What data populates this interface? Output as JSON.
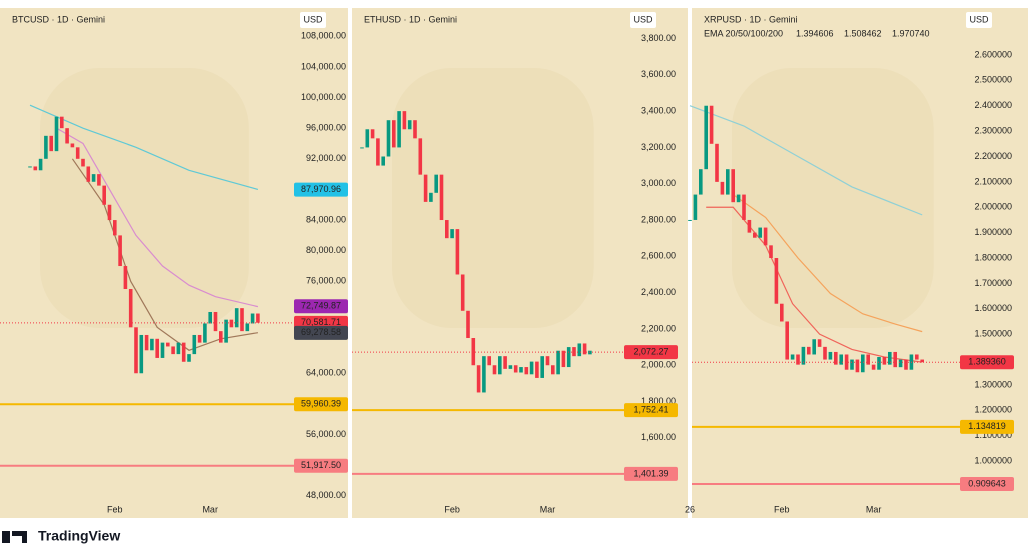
{
  "chart_data": [
    {
      "type": "candlestick",
      "title": "BTCUSD · 1D · Gemini",
      "currency": "USD",
      "categories": [
        null,
        null,
        null,
        null,
        null,
        null,
        null,
        null,
        null,
        null,
        null,
        null,
        null,
        null,
        null,
        null,
        "Feb",
        null,
        null,
        null,
        null,
        null,
        null,
        null,
        null,
        null,
        null,
        null,
        null,
        null,
        null,
        null,
        null,
        null,
        "Mar",
        null,
        null,
        null,
        null,
        null,
        null,
        null,
        null,
        null
      ],
      "values": [
        91000,
        90500,
        92000,
        95000,
        93000,
        97500,
        96000,
        94000,
        93500,
        92000,
        91000,
        89000,
        90000,
        88500,
        86000,
        84000,
        82000,
        78000,
        75000,
        70000,
        64000,
        69000,
        67000,
        68500,
        66000,
        68000,
        67500,
        66500,
        68000,
        65500,
        66500,
        69000,
        68000,
        70500,
        72000,
        69500,
        68000,
        71000,
        70000,
        72500,
        69500,
        70500,
        71800,
        70600
      ],
      "up_color": "#089981",
      "down_color": "#f23645",
      "lines": [
        {
          "color": "#5fc9d6",
          "x": [
            0,
            10,
            20,
            30,
            43
          ],
          "values": [
            99000,
            96000,
            93500,
            90500,
            88000
          ]
        },
        {
          "color": "#d98ccf",
          "x": [
            5,
            10,
            15,
            20,
            25,
            30,
            35,
            43
          ],
          "values": [
            96000,
            94000,
            88000,
            82000,
            78000,
            75500,
            74000,
            72700
          ]
        },
        {
          "color": "#a0785a",
          "x": [
            8,
            14,
            19,
            24,
            30,
            36,
            43
          ],
          "values": [
            92000,
            86000,
            76000,
            70000,
            67000,
            68500,
            69300
          ]
        }
      ],
      "ylim": [
        46800,
        109600
      ],
      "yticks": [
        {
          "value": 108000,
          "label": "108,000.00"
        },
        {
          "value": 104000,
          "label": "104,000.00"
        },
        {
          "value": 100000,
          "label": "100,000.00"
        },
        {
          "value": 96000,
          "label": "96,000.00"
        },
        {
          "value": 92000,
          "label": "92,000.00"
        },
        {
          "value": 84000,
          "label": "84,000.00"
        },
        {
          "value": 80000,
          "label": "80,000.00"
        },
        {
          "value": 76000,
          "label": "76,000.00"
        },
        {
          "value": 64000,
          "label": "64,000.00"
        },
        {
          "value": 56000,
          "label": "56,000.00"
        },
        {
          "value": 48000,
          "label": "48,000.00"
        }
      ],
      "price_labels": [
        {
          "value": 87970.96,
          "label": "87,970.96",
          "color": "#22c1e6",
          "text_color": "#111111"
        },
        {
          "value": 72749.87,
          "label": "72,749.87",
          "color": "#9c27b0",
          "text_color": "#ffffff"
        },
        {
          "value": 70581.71,
          "label": "70,581.71",
          "color": "#f23645",
          "text_color": "#ffffff",
          "line": "dotted"
        },
        {
          "value": 69278.58,
          "label": "69,278.58",
          "color": "#434651",
          "text_color": "#ffffff"
        },
        {
          "value": 59960.39,
          "label": "59,960.39",
          "color": "#f5b800",
          "text_color": "#111111",
          "line": "solid"
        },
        {
          "value": 51917.5,
          "label": "51,917.50",
          "color": "#f77c80",
          "text_color": "#ffffff",
          "line": "solid"
        }
      ]
    },
    {
      "type": "candlestick",
      "title": "ETHUSD · 1D · Gemini",
      "currency": "USD",
      "categories": [
        null,
        null,
        null,
        null,
        null,
        null,
        null,
        null,
        null,
        null,
        null,
        null,
        null,
        null,
        null,
        null,
        null,
        "Feb",
        null,
        null,
        null,
        null,
        null,
        null,
        null,
        null,
        null,
        null,
        null,
        null,
        null,
        null,
        null,
        null,
        null,
        "Mar",
        null,
        null,
        null,
        null,
        null,
        null,
        null,
        null
      ],
      "values": [
        3200,
        3300,
        3250,
        3100,
        3150,
        3350,
        3200,
        3400,
        3300,
        3350,
        3250,
        3050,
        2900,
        2950,
        3050,
        2800,
        2700,
        2750,
        2500,
        2300,
        2150,
        2000,
        1850,
        2050,
        2000,
        1950,
        2050,
        1980,
        2000,
        1960,
        1990,
        1950,
        2020,
        1930,
        2050,
        2000,
        1950,
        2080,
        1990,
        2100,
        2050,
        2120,
        2060,
        2080
      ],
      "up_color": "#089981",
      "down_color": "#f23645",
      "ylim": [
        1230,
        3880
      ],
      "yticks": [
        {
          "value": 3800,
          "label": "3,800.00"
        },
        {
          "value": 3600,
          "label": "3,600.00"
        },
        {
          "value": 3400,
          "label": "3,400.00"
        },
        {
          "value": 3200,
          "label": "3,200.00"
        },
        {
          "value": 3000,
          "label": "3,000.00"
        },
        {
          "value": 2800,
          "label": "2,800.00"
        },
        {
          "value": 2600,
          "label": "2,600.00"
        },
        {
          "value": 2400,
          "label": "2,400.00"
        },
        {
          "value": 2200,
          "label": "2,200.00"
        },
        {
          "value": 2000,
          "label": "2,000.00"
        },
        {
          "value": 1800,
          "label": "1,800.00"
        },
        {
          "value": 1600,
          "label": "1,600.00"
        }
      ],
      "price_labels": [
        {
          "value": 2072.27,
          "label": "2,072.27",
          "color": "#f23645",
          "text_color": "#ffffff",
          "line": "dotted"
        },
        {
          "value": 1752.41,
          "label": "1,752.41",
          "color": "#f5b800",
          "text_color": "#111111",
          "line": "solid"
        },
        {
          "value": 1401.39,
          "label": "1,401.39",
          "color": "#f77c80",
          "text_color": "#ffffff",
          "line": "solid"
        }
      ]
    },
    {
      "type": "candlestick",
      "title": "XRPUSD · 1D · Gemini",
      "currency": "USD",
      "indicator": {
        "label": "EMA 20/50/100/200",
        "values": [
          1.394606,
          1.508462,
          {
            "value": 1.97074,
            "label": "1.970740"
          }
        ],
        "colors": [
          "#f23645",
          "#f57c00",
          "#26a6b5"
        ]
      },
      "categories": [
        "26",
        null,
        null,
        null,
        null,
        null,
        null,
        null,
        null,
        null,
        null,
        null,
        null,
        null,
        null,
        null,
        null,
        "Feb",
        null,
        null,
        null,
        null,
        null,
        null,
        null,
        null,
        null,
        null,
        null,
        null,
        null,
        null,
        null,
        null,
        "Mar",
        null,
        null,
        null,
        null,
        null,
        null,
        null,
        null,
        null
      ],
      "values": [
        1.95,
        2.05,
        2.15,
        2.4,
        2.25,
        2.1,
        2.05,
        2.15,
        2.02,
        2.05,
        1.95,
        1.9,
        1.88,
        1.92,
        1.85,
        1.8,
        1.62,
        1.55,
        1.4,
        1.42,
        1.38,
        1.45,
        1.42,
        1.48,
        1.45,
        1.4,
        1.43,
        1.38,
        1.42,
        1.36,
        1.4,
        1.35,
        1.42,
        1.38,
        1.36,
        1.41,
        1.38,
        1.43,
        1.37,
        1.4,
        1.36,
        1.42,
        1.4,
        1.39
      ],
      "up_color": "#089981",
      "down_color": "#f23645",
      "lines": [
        {
          "color": "#8fd0d6",
          "x": [
            0,
            10,
            20,
            30,
            43
          ],
          "values": [
            2.4,
            2.32,
            2.2,
            2.08,
            1.97
          ]
        },
        {
          "color": "#f5a35c",
          "x": [
            8,
            14,
            20,
            26,
            32,
            38,
            43
          ],
          "values": [
            2.05,
            1.96,
            1.8,
            1.66,
            1.58,
            1.54,
            1.51
          ]
        },
        {
          "color": "#f0645a",
          "x": [
            3,
            8,
            14,
            19,
            24,
            30,
            36,
            43
          ],
          "values": [
            2.0,
            2.0,
            1.85,
            1.62,
            1.5,
            1.44,
            1.41,
            1.39
          ]
        }
      ],
      "ylim": [
        0.827,
        2.722
      ],
      "yticks": [
        {
          "value": 2.6,
          "label": "2.600000"
        },
        {
          "value": 2.5,
          "label": "2.500000"
        },
        {
          "value": 2.4,
          "label": "2.400000"
        },
        {
          "value": 2.3,
          "label": "2.300000"
        },
        {
          "value": 2.2,
          "label": "2.200000"
        },
        {
          "value": 2.1,
          "label": "2.100000"
        },
        {
          "value": 2.0,
          "label": "2.000000"
        },
        {
          "value": 1.9,
          "label": "1.900000"
        },
        {
          "value": 1.8,
          "label": "1.800000"
        },
        {
          "value": 1.7,
          "label": "1.700000"
        },
        {
          "value": 1.6,
          "label": "1.600000"
        },
        {
          "value": 1.5,
          "label": "1.500000"
        },
        {
          "value": 1.3,
          "label": "1.300000"
        },
        {
          "value": 1.2,
          "label": "1.200000"
        },
        {
          "value": 1.1,
          "label": "1.100000"
        },
        {
          "value": 1.0,
          "label": "1.000000"
        }
      ],
      "price_labels": [
        {
          "value": 1.38936,
          "label": "1.389360",
          "color": "#f23645",
          "text_color": "#ffffff",
          "line": "dotted"
        },
        {
          "value": 1.134819,
          "label": "1.134819",
          "color": "#f5b800",
          "text_color": "#111111",
          "line": "solid"
        },
        {
          "value": 0.909643,
          "label": "0.909643",
          "color": "#f77c80",
          "text_color": "#ffffff",
          "line": "solid"
        }
      ]
    }
  ],
  "footer": {
    "brand": "TradingView"
  }
}
